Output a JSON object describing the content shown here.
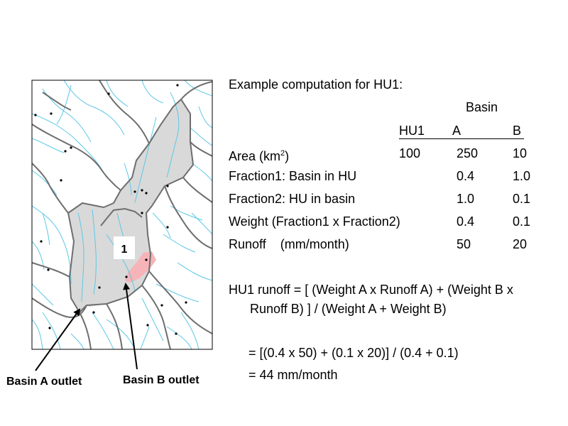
{
  "map": {
    "hu_label": "1",
    "outlet_a_label": "Basin A outlet",
    "outlet_b_label": "Basin B outlet"
  },
  "colors": {
    "river": "#5bc8e6",
    "boundary": "#6e6e6e",
    "basin_a": "#d9d9d9",
    "basin_b": "#f6b4b8"
  },
  "table": {
    "title": "Example computation for HU1:",
    "group_header": "Basin",
    "col_hu1": "HU1",
    "col_a": "A",
    "col_b": "B",
    "area_label": "Area (km",
    "area_sup": "2",
    "area_close": ")",
    "area_hu1": "100",
    "area_a": "250",
    "area_b": "10",
    "f1_label": "Fraction1:   Basin in HU",
    "f1_a": "0.4",
    "f1_b": "1.0",
    "f2_label": "Fraction2:   HU in basin",
    "f2_a": "1.0",
    "f2_b": "0.1",
    "weight_label": "Weight (Fraction1 x Fraction2)",
    "weight_a": "0.4",
    "weight_b": "0.1",
    "runoff_label": "Runoff    (mm/month)",
    "runoff_a": "50",
    "runoff_b": "20"
  },
  "formula": {
    "line1": "HU1 runoff = [ (Weight A x Runoff A) + (Weight B x",
    "line2": "Runoff B) ] / (Weight A + Weight B)",
    "line3": "= [(0.4 x 50) + (0.1 x 20)] / (0.4 + 0.1)",
    "line4": "= 44 mm/month"
  }
}
